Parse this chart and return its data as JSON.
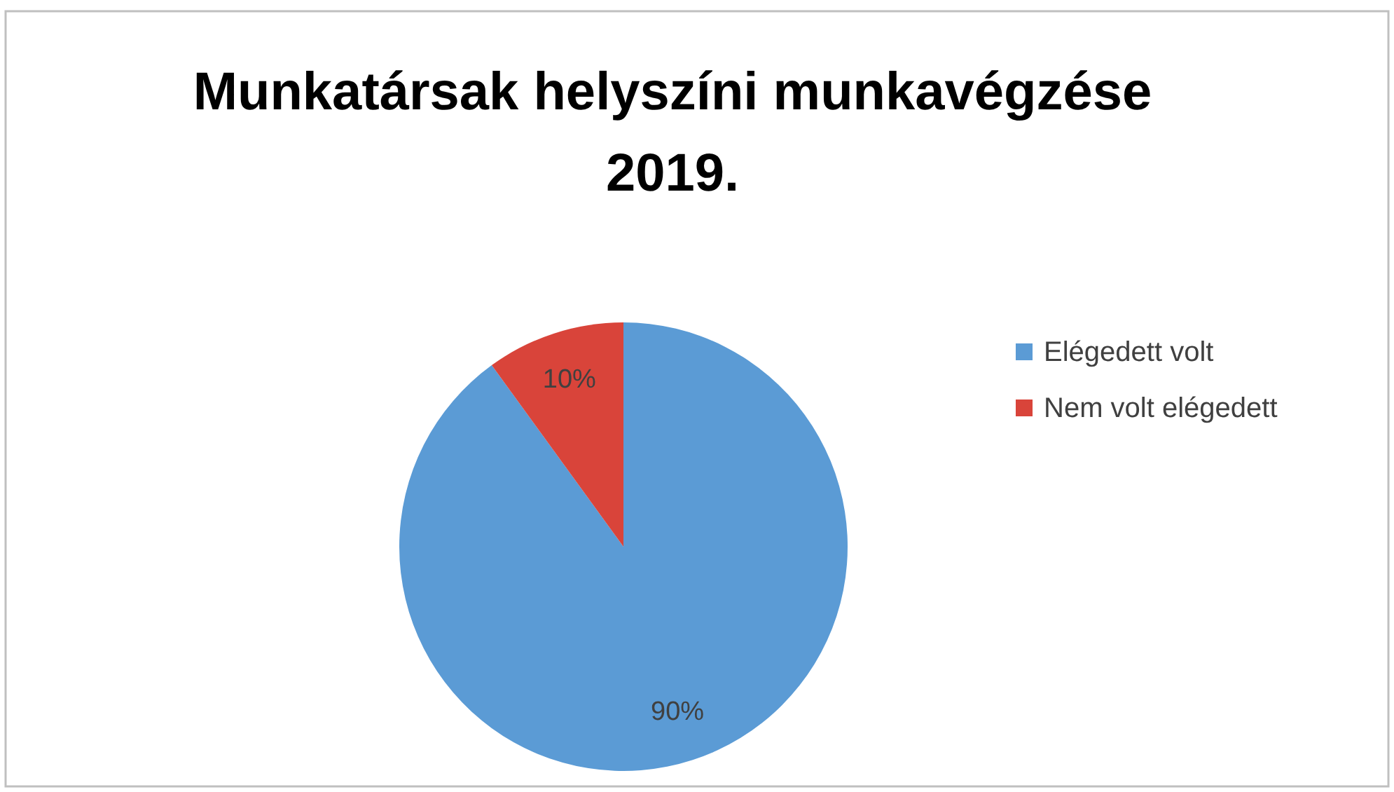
{
  "chart_data": {
    "type": "pie",
    "title": "Munkatársak helyszíni munkavégzése 2019.",
    "categories": [
      "Elégedett volt",
      "Nem volt elégedett"
    ],
    "values": [
      90,
      10
    ],
    "colors": [
      "#5b9bd5",
      "#d9443a"
    ],
    "value_labels": [
      "90%",
      "10%"
    ],
    "legend": "right"
  }
}
